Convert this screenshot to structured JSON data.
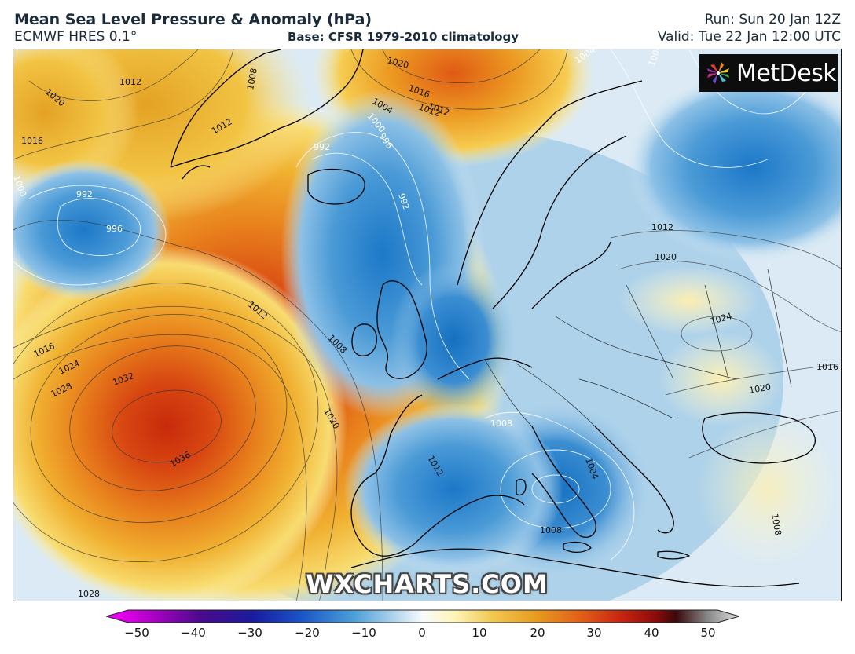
{
  "header": {
    "title": "Mean Sea Level Pressure & Anomaly (hPa)",
    "model": "ECMWF HRES 0.1°",
    "base": "Base: CFSR 1979-2010 climatology",
    "run": "Run: Sun 20 Jan 12Z",
    "valid": "Valid: Tue 22 Jan 12:00 UTC"
  },
  "logo": {
    "text": "MetDesk",
    "icon": "metdesk-pinwheel-icon"
  },
  "watermark": "WXCHARTS.COM",
  "isobar_labels": [
    "1012",
    "1020",
    "1016",
    "1012",
    "1008",
    "1012",
    "1020",
    "1004",
    "1016",
    "1012",
    "1004",
    "1000",
    "996",
    "992",
    "992",
    "1004",
    "1008",
    "1012",
    "992",
    "996",
    "1000",
    "1016",
    "1024",
    "1028",
    "1032",
    "1036",
    "1012",
    "1008",
    "1020",
    "1016",
    "1020",
    "1024",
    "1020",
    "1016",
    "1016",
    "1008",
    "1012",
    "1004",
    "1008",
    "1012",
    "1028"
  ],
  "colorbar": {
    "ticks": [
      "−50",
      "−40",
      "−30",
      "−20",
      "−10",
      "0",
      "10",
      "20",
      "30",
      "40",
      "50"
    ],
    "colors": [
      "#ff00ff",
      "#b000c8",
      "#5a0a8c",
      "#1a1a9e",
      "#1a56c8",
      "#4a9fd8",
      "#a8d0ea",
      "#f4f8fb",
      "#fff8c8",
      "#f0c850",
      "#e89a20",
      "#e06018",
      "#c82810",
      "#8a0a0a",
      "#3a0a0a",
      "#888888",
      "#d8d8d8"
    ]
  }
}
